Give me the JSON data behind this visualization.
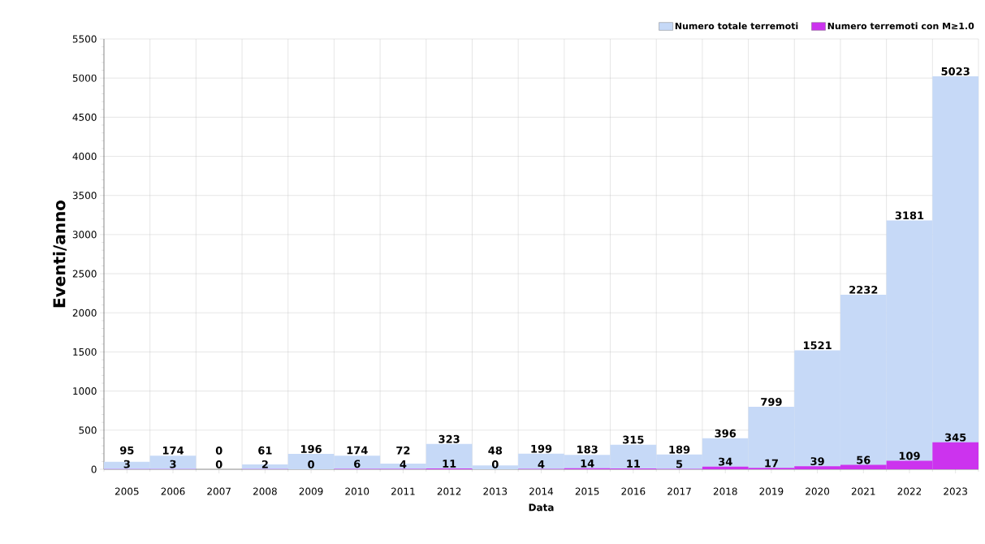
{
  "chart_data": {
    "type": "bar",
    "xlabel": "Data",
    "ylabel": "Eventi/anno",
    "categories": [
      "2005",
      "2006",
      "2007",
      "2008",
      "2009",
      "2010",
      "2011",
      "2012",
      "2013",
      "2014",
      "2015",
      "2016",
      "2017",
      "2018",
      "2019",
      "2020",
      "2021",
      "2022",
      "2023"
    ],
    "series": [
      {
        "name": "Numero totale terremoti",
        "color": "#c6d9f7",
        "values": [
          95,
          174,
          0,
          61,
          196,
          174,
          72,
          323,
          48,
          199,
          183,
          315,
          189,
          396,
          799,
          1521,
          2232,
          3181,
          5023
        ]
      },
      {
        "name": "Numero terremoti con M≥1.0",
        "color": "#cc33ee",
        "values": [
          3,
          3,
          0,
          2,
          0,
          6,
          4,
          11,
          0,
          4,
          14,
          11,
          5,
          34,
          17,
          39,
          56,
          109,
          345
        ]
      }
    ],
    "ylim": [
      0,
      5500
    ],
    "yticks": [
      0,
      500,
      1000,
      1500,
      2000,
      2500,
      3000,
      3500,
      4000,
      4500,
      5000,
      5500
    ],
    "grid": true,
    "legend": "top right",
    "data_labels": true
  }
}
